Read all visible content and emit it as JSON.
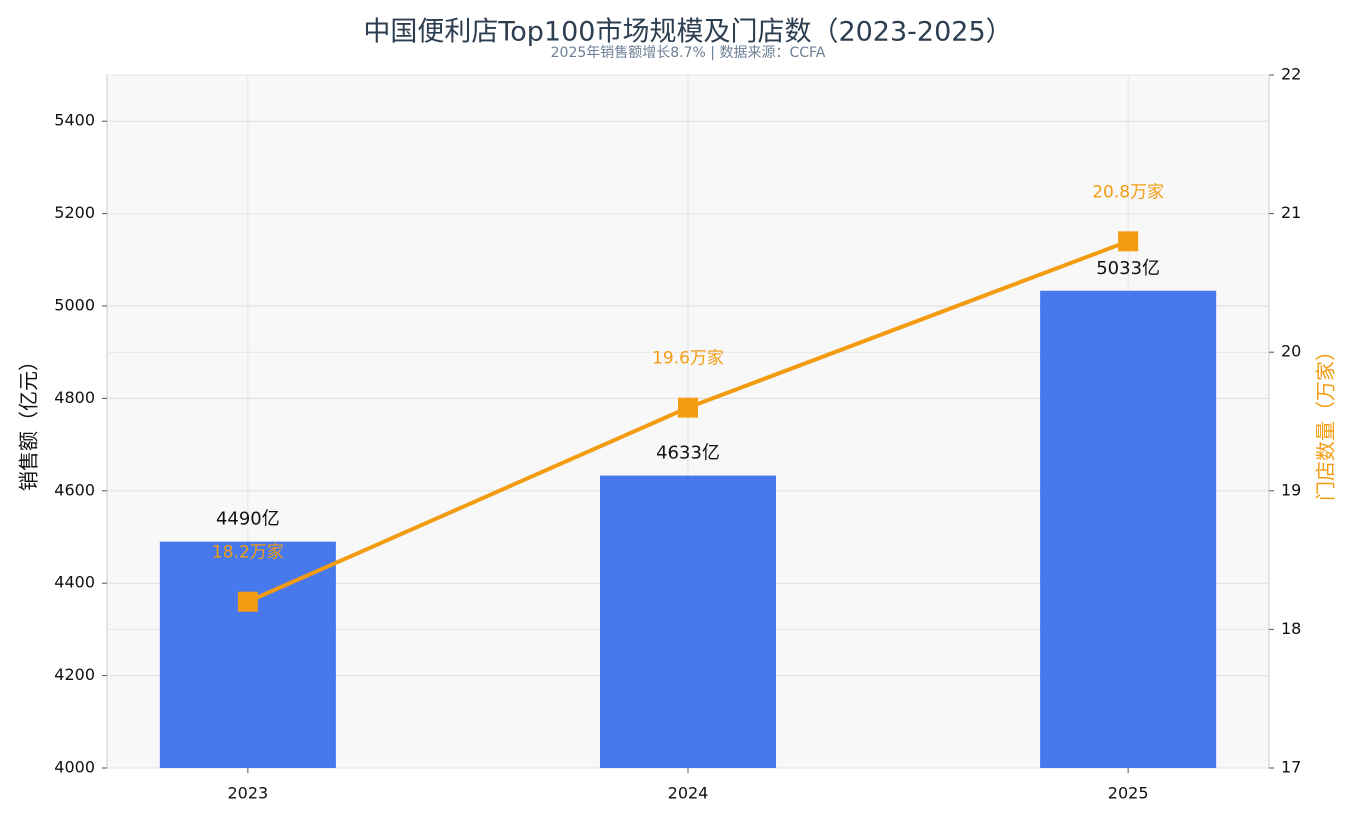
{
  "chart_data": {
    "type": "bar",
    "title": "中国便利店Top100市场规模及门店数（2023-2025）",
    "subtitle": "2025年销售额增长8.7% | 数据来源：CCFA",
    "categories": [
      "2023",
      "2024",
      "2025"
    ],
    "ylabel": "销售额（亿元）",
    "y2label": "门店数量（万家）",
    "ylim": [
      4000,
      5500
    ],
    "yticks": [
      4000,
      4200,
      4400,
      4600,
      4800,
      5000,
      5200,
      5400
    ],
    "y2lim": [
      17,
      22
    ],
    "y2ticks": [
      17,
      18,
      19,
      20,
      21,
      22
    ],
    "grid": true,
    "series": [
      {
        "type": "bar",
        "color": "#4779ec",
        "values": [
          4490,
          4633,
          5033
        ],
        "value_labels": [
          "4490亿",
          "4633亿",
          "5033亿"
        ]
      },
      {
        "type": "line",
        "axis": "y2",
        "color": "#f39c12",
        "values": [
          18.2,
          19.6,
          20.8
        ],
        "value_labels": [
          "18.2万家",
          "19.6万家",
          "20.8万家"
        ]
      }
    ]
  }
}
